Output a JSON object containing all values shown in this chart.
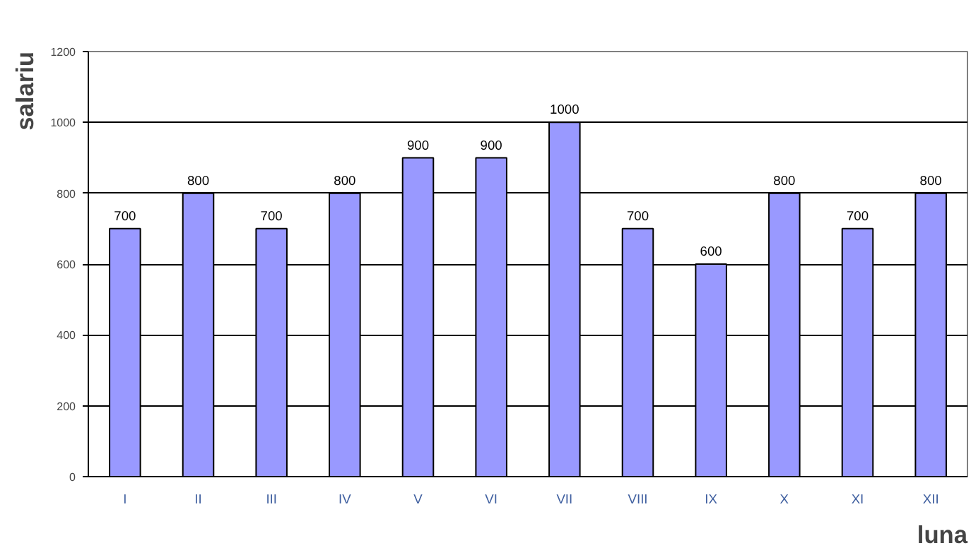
{
  "chart_data": {
    "type": "bar",
    "xlabel": "luna",
    "ylabel": "salariu",
    "categories": [
      "I",
      "II",
      "III",
      "IV",
      "V",
      "VI",
      "VII",
      "VIII",
      "IX",
      "X",
      "XI",
      "XII"
    ],
    "values": [
      700,
      800,
      700,
      800,
      900,
      900,
      1000,
      700,
      600,
      800,
      700,
      800
    ],
    "color": "#9999ff",
    "ylim": [
      0,
      1200
    ],
    "yticks": [
      0,
      200,
      400,
      600,
      800,
      1000,
      1200
    ],
    "grid": "y",
    "data_labels": true
  }
}
